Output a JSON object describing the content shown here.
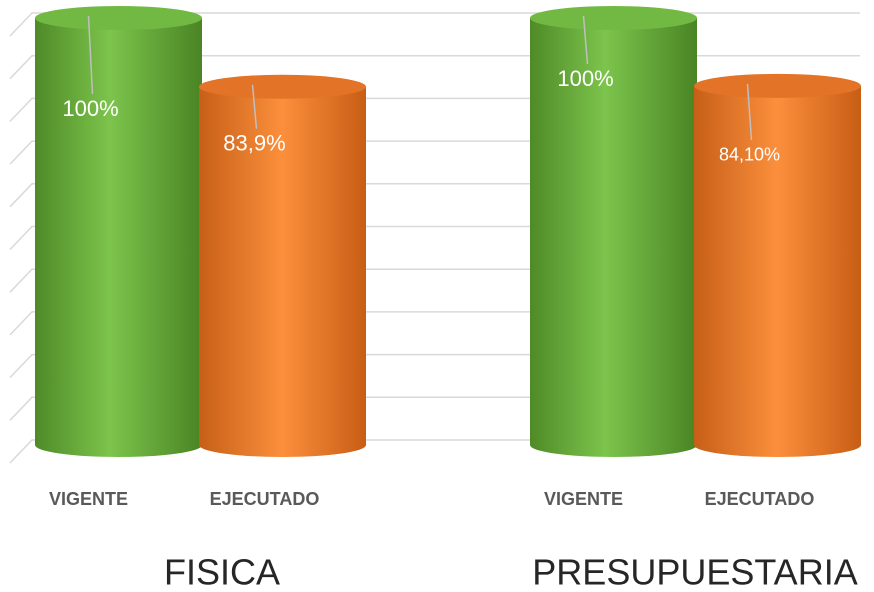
{
  "chart_data": {
    "type": "bar",
    "categories": [
      "FISICA",
      "PRESUPUESTARIA"
    ],
    "series": [
      {
        "name": "VIGENTE",
        "color": "#70ad47",
        "values": [
          100,
          100
        ],
        "value_labels": [
          "100%",
          "100%"
        ]
      },
      {
        "name": "EJECUTADO",
        "color": "#ed7d31",
        "values": [
          83.9,
          84.1
        ],
        "value_labels": [
          "83,9%",
          "84,10%"
        ]
      }
    ],
    "ylim": [
      0,
      100
    ],
    "yticks": [
      0,
      10,
      20,
      30,
      40,
      50,
      60,
      70,
      80,
      90,
      100
    ],
    "grid": true
  }
}
